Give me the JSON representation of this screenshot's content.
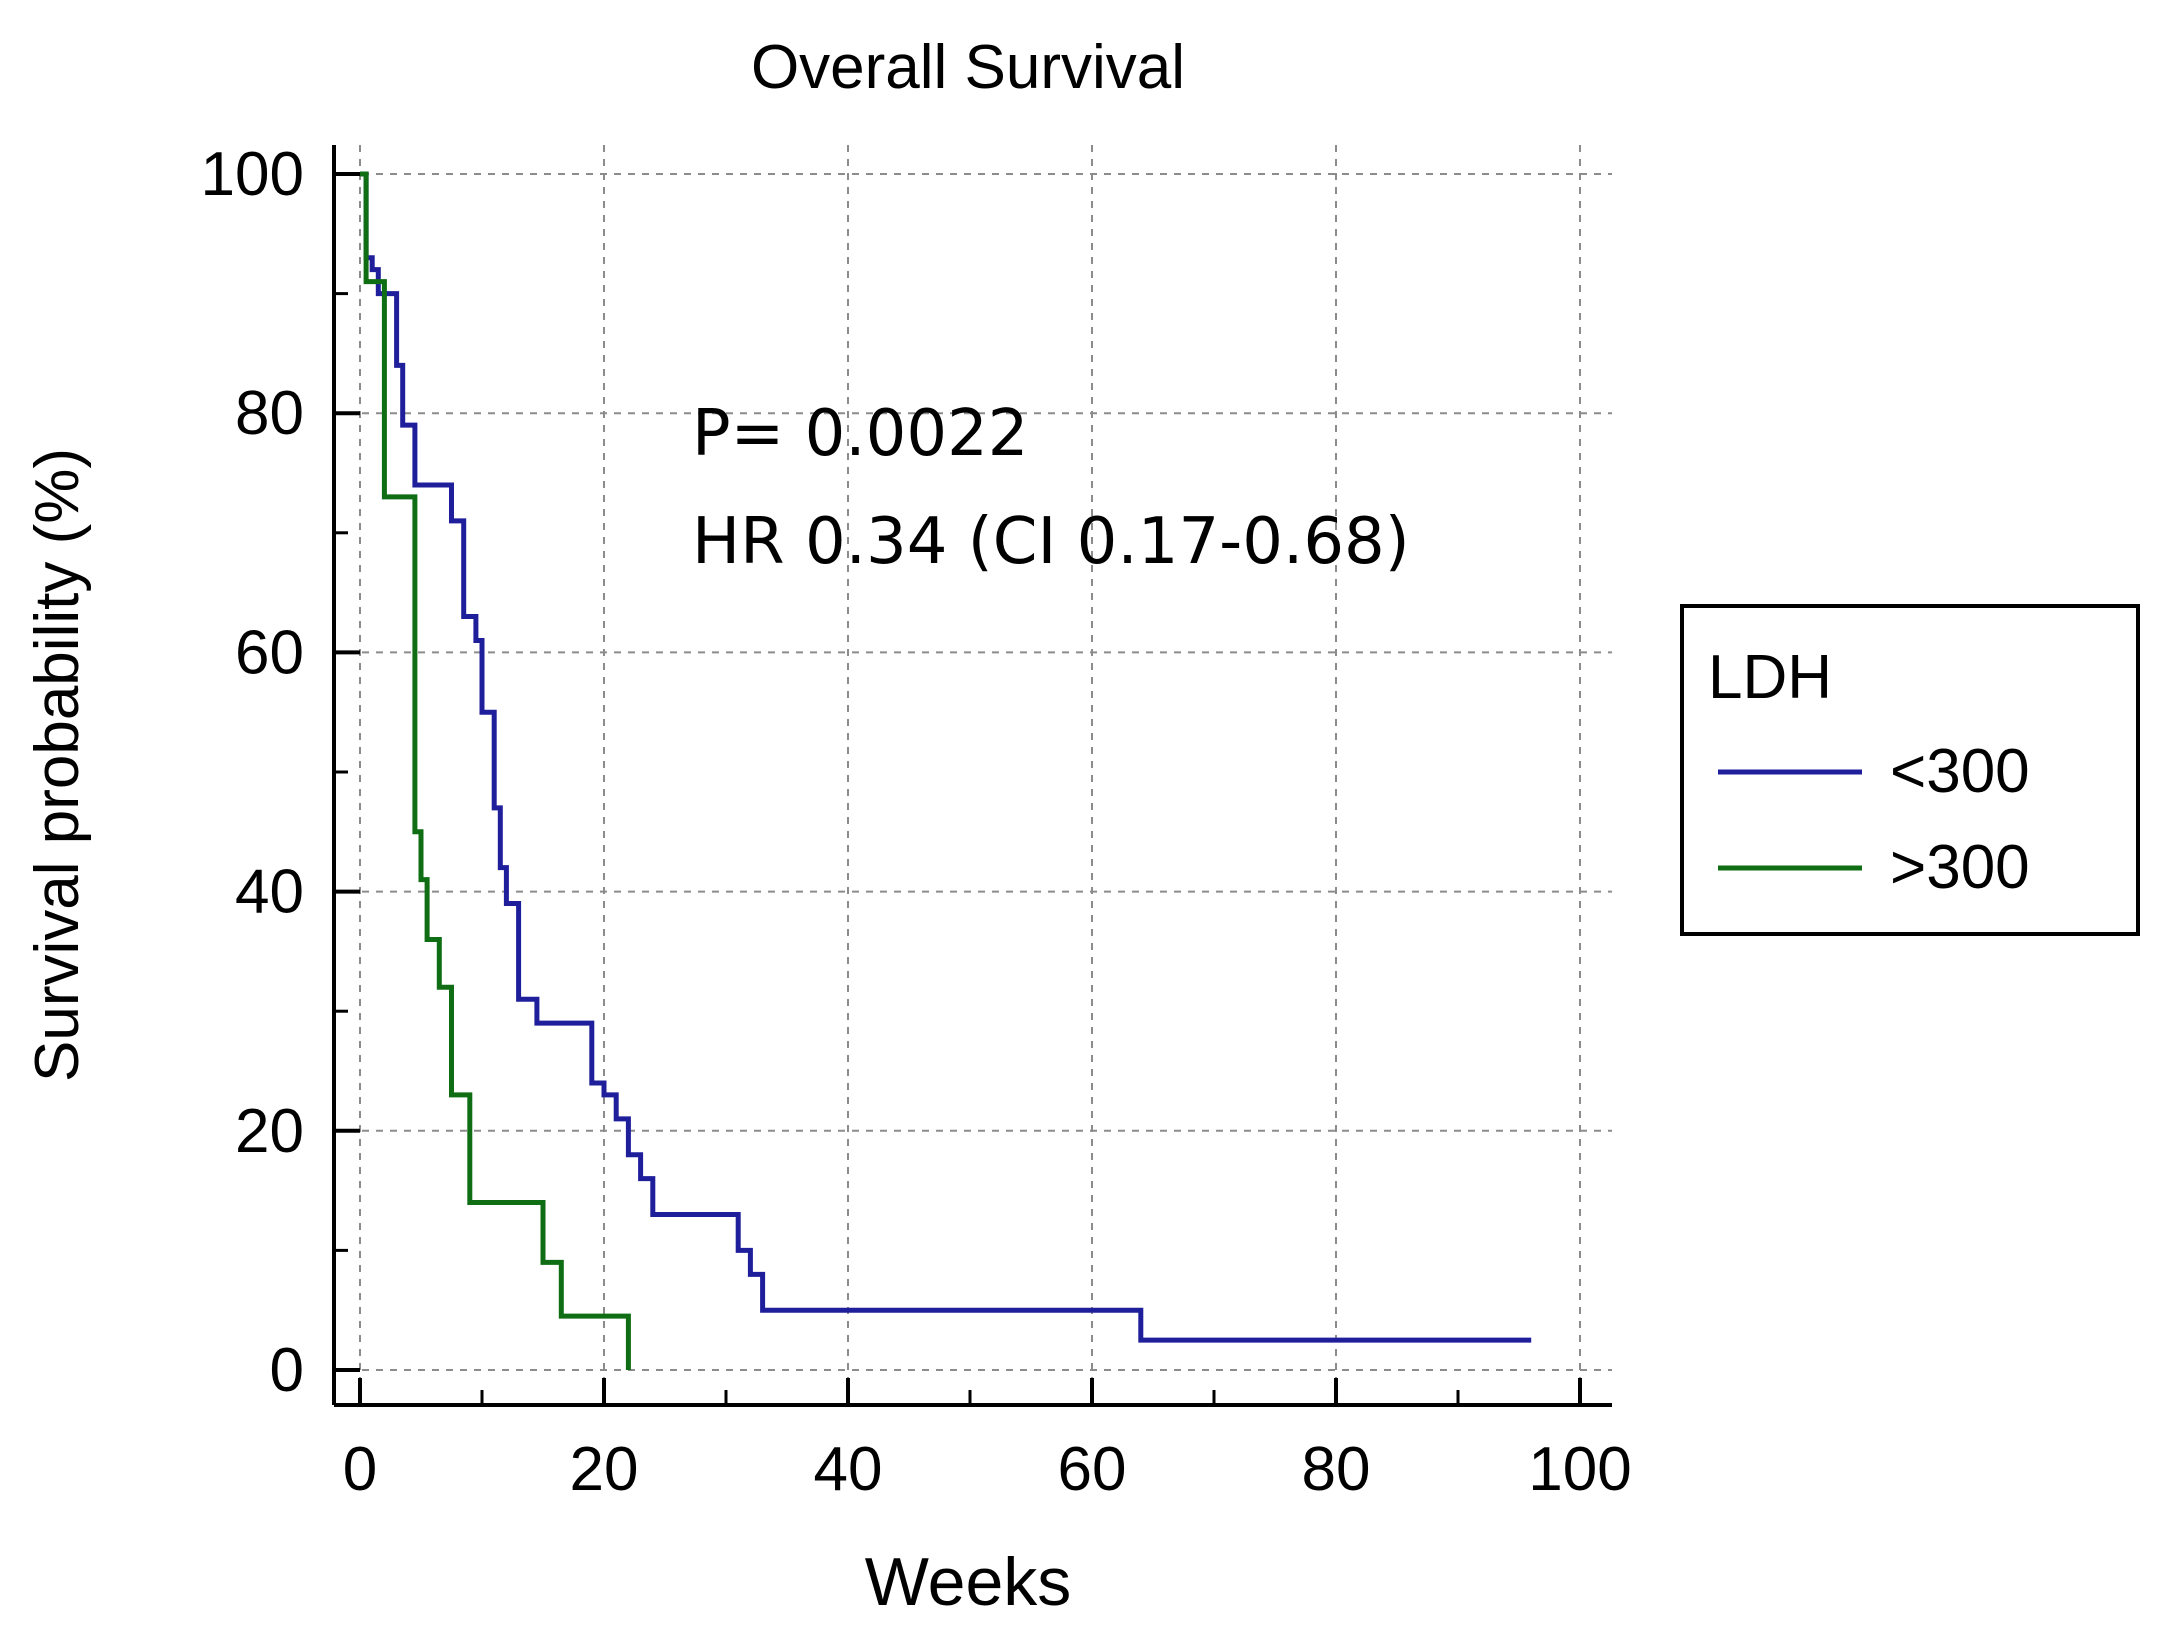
{
  "chart_data": {
    "type": "line",
    "title": "Overall Survival",
    "xlabel": "Weeks",
    "ylabel": "Survival probability (%)",
    "xlim": [
      0,
      100
    ],
    "ylim": [
      0,
      100
    ],
    "xticks": [
      "0",
      "20",
      "40",
      "60",
      "80",
      "100"
    ],
    "yticks": [
      "0",
      "20",
      "40",
      "60",
      "80",
      "100"
    ],
    "grid": true,
    "annotations": [
      "P= 0.0022",
      "HR 0.34 (CI 0.17-0.68)"
    ],
    "legend": {
      "title": "LDH",
      "placement": "right"
    },
    "series": [
      {
        "name": "<300",
        "color": "#1f1f9c",
        "step": "post",
        "x": [
          0,
          0.5,
          1.0,
          1.5,
          2.0,
          3.0,
          3.5,
          4.5,
          7.5,
          8.0,
          8.5,
          9.5,
          10.0,
          11.0,
          11.5,
          12.0,
          13.0,
          14.5,
          19.0,
          20.0,
          21.0,
          22.0,
          23.0,
          24.0,
          31.0,
          32.0,
          33.0,
          64.0,
          96.0
        ],
        "y": [
          100,
          93,
          92,
          90,
          90,
          84,
          79,
          74,
          71,
          71,
          63,
          61,
          55,
          47,
          42,
          39,
          31,
          29,
          24,
          23,
          21,
          18,
          16,
          13,
          10,
          8,
          5,
          2.5,
          2.5
        ]
      },
      {
        "name": ">300",
        "color": "#0f6e14",
        "step": "post",
        "x": [
          0,
          0.5,
          2.0,
          4.0,
          4.5,
          5.0,
          5.5,
          6.5,
          7.5,
          9.0,
          10.0,
          15.0,
          16.5,
          22.0
        ],
        "y": [
          100,
          91,
          73,
          73,
          45,
          41,
          36,
          32,
          23,
          14,
          14,
          9,
          4.5,
          0
        ]
      }
    ]
  }
}
